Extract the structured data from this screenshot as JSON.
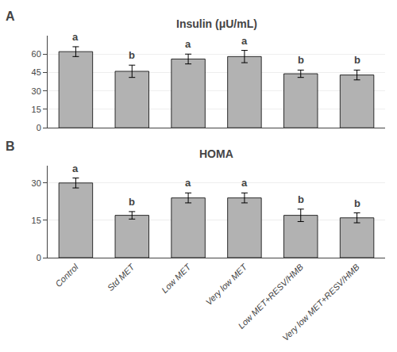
{
  "chart_data": [
    {
      "type": "bar",
      "title": "Insulin (μU/mL)",
      "categories": [
        "Control",
        "Std MET",
        "Low MET",
        "Very low MET",
        "Low MET+RESV/HMB",
        "Very low MET+RESV/HMB"
      ],
      "values": [
        62,
        46,
        56,
        58,
        44,
        43
      ],
      "errors": [
        4,
        5,
        4,
        5,
        3,
        4
      ],
      "annotations": [
        {
          "text": "A"
        },
        {
          "x": "Control",
          "text": "a"
        },
        {
          "x": "Std MET",
          "text": "b"
        },
        {
          "x": "Low MET",
          "text": "a"
        },
        {
          "x": "Very low MET",
          "text": "a"
        },
        {
          "x": "Low MET+RESV/HMB",
          "text": "b"
        },
        {
          "x": "Very low MET+RESV/HMB",
          "text": "b"
        }
      ],
      "color": "#b2b2b2",
      "ylim": [
        0,
        75
      ],
      "yticks": [
        0,
        15,
        30,
        45,
        60
      ],
      "grid": true,
      "tick_labels": "y"
    },
    {
      "type": "bar",
      "title": "HOMA",
      "categories": [
        "Control",
        "Std MET",
        "Low MET",
        "Very low MET",
        "Low MET+RESV/HMB",
        "Very low MET+RESV/HMB"
      ],
      "values": [
        30,
        17,
        24,
        24,
        17,
        16
      ],
      "errors": [
        2,
        1.5,
        2,
        2,
        2.5,
        2
      ],
      "annotations": [
        {
          "text": "B"
        },
        {
          "x": "Control",
          "text": "a"
        },
        {
          "x": "Std MET",
          "text": "b"
        },
        {
          "x": "Low MET",
          "text": "a"
        },
        {
          "x": "Very low MET",
          "text": "a"
        },
        {
          "x": "Low MET+RESV/HMB",
          "text": "b"
        },
        {
          "x": "Very low MET+RESV/HMB",
          "text": "b"
        }
      ],
      "color": "#b2b2b2",
      "ylim": [
        0,
        37
      ],
      "yticks": [
        0,
        15,
        30
      ],
      "grid": true
    }
  ]
}
